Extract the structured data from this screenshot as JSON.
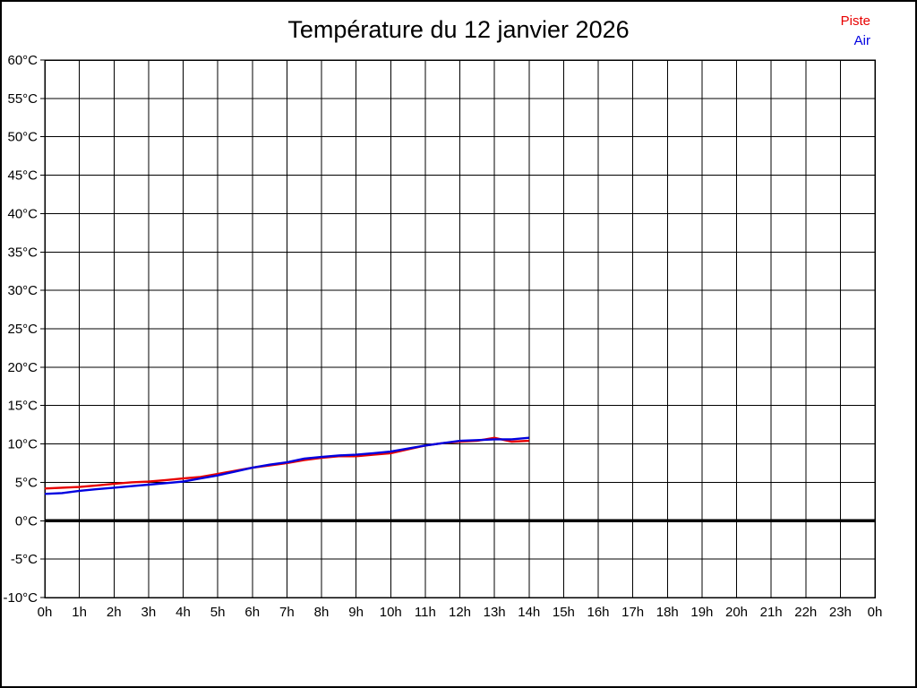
{
  "chart_data": {
    "type": "line",
    "title": "Température du 12 janvier 2026",
    "xlabel": "",
    "ylabel": "",
    "xlim": [
      0,
      24
    ],
    "ylim": [
      -10,
      60
    ],
    "grid": true,
    "legend_position": "top-right",
    "zero_line_value": 0,
    "x_tick_labels": [
      "0h",
      "1h",
      "2h",
      "3h",
      "4h",
      "5h",
      "6h",
      "7h",
      "8h",
      "9h",
      "10h",
      "11h",
      "12h",
      "13h",
      "14h",
      "15h",
      "16h",
      "17h",
      "18h",
      "19h",
      "20h",
      "21h",
      "22h",
      "23h",
      "0h"
    ],
    "y_tick_values": [
      -10,
      -5,
      0,
      5,
      10,
      15,
      20,
      25,
      30,
      35,
      40,
      45,
      50,
      55,
      60
    ],
    "y_tick_labels": [
      "-10°C",
      "-5°C",
      "0°C",
      "5°C",
      "10°C",
      "15°C",
      "20°C",
      "25°C",
      "30°C",
      "35°C",
      "40°C",
      "45°C",
      "50°C",
      "55°C",
      "60°C"
    ],
    "x": [
      0,
      0.5,
      1,
      1.5,
      2,
      2.5,
      3,
      3.5,
      4,
      4.5,
      5,
      5.5,
      6,
      6.5,
      7,
      7.5,
      8,
      8.5,
      9,
      9.5,
      10,
      10.5,
      11,
      11.5,
      12,
      12.5,
      13,
      13.5,
      14
    ],
    "series": [
      {
        "name": "Piste",
        "color": "#e80000",
        "values": [
          4.2,
          4.3,
          4.4,
          4.6,
          4.8,
          5.0,
          5.1,
          5.3,
          5.5,
          5.7,
          6.1,
          6.5,
          6.9,
          7.2,
          7.5,
          7.9,
          8.2,
          8.4,
          8.4,
          8.6,
          8.8,
          9.3,
          9.8,
          10.1,
          10.3,
          10.4,
          10.8,
          10.3,
          10.4
        ]
      },
      {
        "name": "Air",
        "color": "#0000e0",
        "values": [
          3.5,
          3.6,
          3.9,
          4.1,
          4.3,
          4.5,
          4.7,
          4.9,
          5.1,
          5.5,
          5.9,
          6.4,
          6.9,
          7.3,
          7.6,
          8.1,
          8.3,
          8.5,
          8.6,
          8.8,
          9.0,
          9.4,
          9.8,
          10.1,
          10.4,
          10.5,
          10.6,
          10.6,
          10.8
        ]
      }
    ],
    "colors": {
      "background": "#ffffff",
      "grid": "#000000",
      "zero_line": "#000000",
      "frame": "#000000",
      "text": "#000000"
    }
  }
}
